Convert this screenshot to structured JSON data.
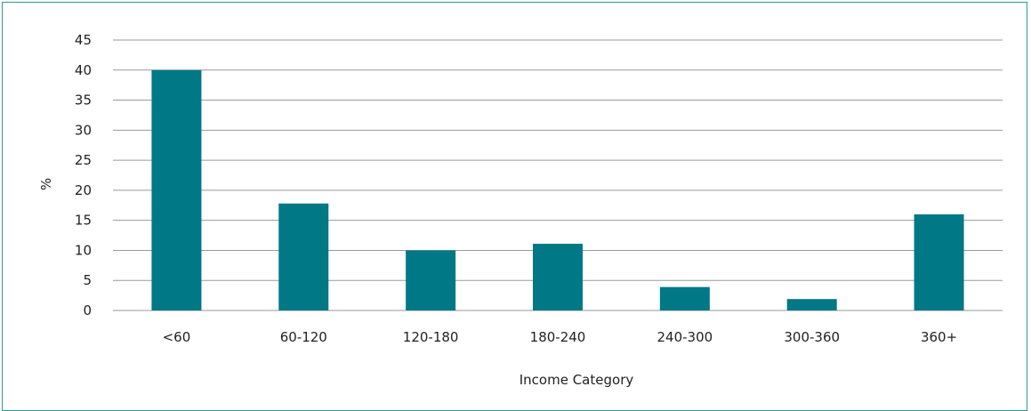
{
  "chart_data": {
    "type": "bar",
    "categories": [
      "<60",
      "60-120",
      "120-180",
      "180-240",
      "240-300",
      "300-360",
      "360+"
    ],
    "series": [
      {
        "values": [
          40,
          17.8,
          10,
          11.1,
          3.9,
          1.9,
          16
        ]
      }
    ],
    "title": "",
    "xlabel": "Income Category",
    "ylabel": "%",
    "ylim": [
      0,
      45
    ],
    "yticks": [
      0,
      5,
      10,
      15,
      20,
      25,
      30,
      35,
      40,
      45
    ],
    "grid": true,
    "legend": "none",
    "bar_color": "#007886",
    "grid_color": "#9a9a9a",
    "frame_color": "#2e9a93"
  }
}
